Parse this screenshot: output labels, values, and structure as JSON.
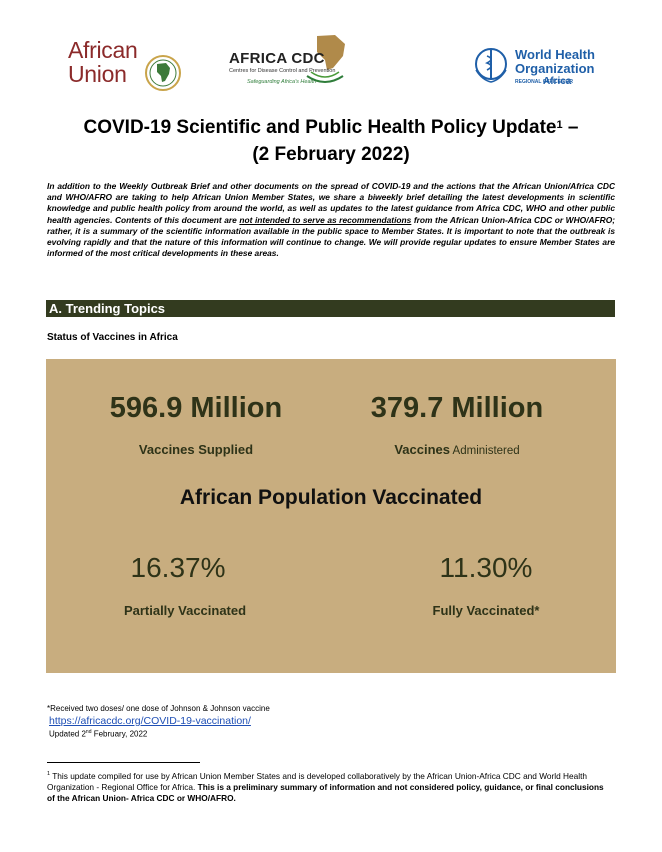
{
  "header": {
    "au_line1": "African",
    "au_line2": "Union",
    "cdc_title": "AFRICA CDC",
    "cdc_subtitle": "Centres for Disease Control and Prevention",
    "cdc_tagline": "Safeguarding Africa's Health",
    "who_line1": "World Health",
    "who_line2": "Organization",
    "who_region": "REGIONAL OFFICE FOR",
    "who_africa": "Africa",
    "colors": {
      "au": "#8b2a2a",
      "cdc_green": "#2f7d3a",
      "who_blue": "#1f5fa8"
    }
  },
  "title": {
    "line1": "COVID-19 Scientific and Public Health Policy Update",
    "sup": "1",
    "line1_suffix": " –",
    "line2": "(2 February 2022)"
  },
  "intro": {
    "part1": "In addition to the Weekly Outbreak Brief and other documents on the spread of COVID-19 and the actions that the African Union/Africa CDC and WHO/AFRO are taking to help African Union Member States, we share a biweekly brief detailing the latest developments in scientific knowledge and public health policy from around the world, as well as updates to the latest guidance from Africa CDC, WHO and other public health agencies. Contents of this document are ",
    "underlined": "not intended to serve as recommendations",
    "part2": " from the African Union-Africa CDC or WHO/AFRO; rather, it is a summary of the scientific information available in the public space to Member States. It is important to note that the outbreak is evolving rapidly and that the nature of this information will continue to change. We will provide regular updates to ensure Member States are informed of the most critical developments in these areas."
  },
  "section": {
    "label": "A.  Trending Topics",
    "color": "#333b1f"
  },
  "subhead": "Status of Vaccines in Africa",
  "panel": {
    "color": "#c8ad7f",
    "supplied_value": "596.9 Million",
    "supplied_label": "Vaccines Supplied",
    "administered_value": "379.7 Million",
    "administered_label_bold": "Vaccines",
    "administered_label_light": " Administered",
    "population_heading": "African Population Vaccinated",
    "partial_value": "16.37%",
    "partial_label": "Partially Vaccinated",
    "full_value": "11.30%",
    "full_label": "Fully Vaccinated*"
  },
  "footer": {
    "note": "*Received two doses/ one dose of Johnson & Johnson vaccine",
    "link": "https://africacdc.org/COVID-19-vaccination/",
    "updated_pre": "Updated 2",
    "updated_sup": "nd",
    "updated_post": " February, 2022"
  },
  "footnote": {
    "sup": "1",
    "normal": " This update compiled for use by African Union Member States and is developed collaboratively by the African Union-Africa CDC and World Health Organization - Regional Office for Africa. ",
    "bold": "This is a preliminary summary of information and not considered policy, guidance, or final conclusions of the African Union- Africa CDC or WHO/AFRO."
  }
}
